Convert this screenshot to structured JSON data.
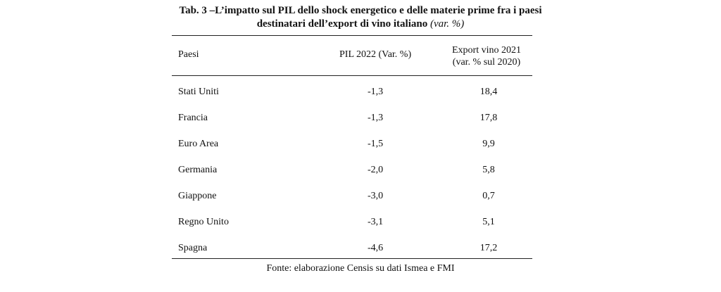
{
  "title": {
    "line1": "Tab. 3 –L’impatto sul PIL dello shock energetico e delle materie prime fra i paesi",
    "line2": "destinatari dell’export di vino italiano",
    "unit": "(var. %)"
  },
  "table": {
    "headers": {
      "country": "Paesi",
      "pil": "PIL 2022 (Var. %)",
      "export_line1": "Export vino 2021",
      "export_line2": "(var. % sul 2020)"
    },
    "rows": [
      {
        "country": "Stati Uniti",
        "pil": "-1,3",
        "export": "18,4"
      },
      {
        "country": "Francia",
        "pil": "-1,3",
        "export": "17,8"
      },
      {
        "country": "Euro Area",
        "pil": "-1,5",
        "export": "9,9"
      },
      {
        "country": "Germania",
        "pil": "-2,0",
        "export": "5,8"
      },
      {
        "country": "Giappone",
        "pil": "-3,0",
        "export": "0,7"
      },
      {
        "country": "Regno Unito",
        "pil": "-3,1",
        "export": "5,1"
      },
      {
        "country": "Spagna",
        "pil": "-4,6",
        "export": "17,2"
      }
    ]
  },
  "source": "Fonte: elaborazione Censis su dati Ismea e FMI"
}
